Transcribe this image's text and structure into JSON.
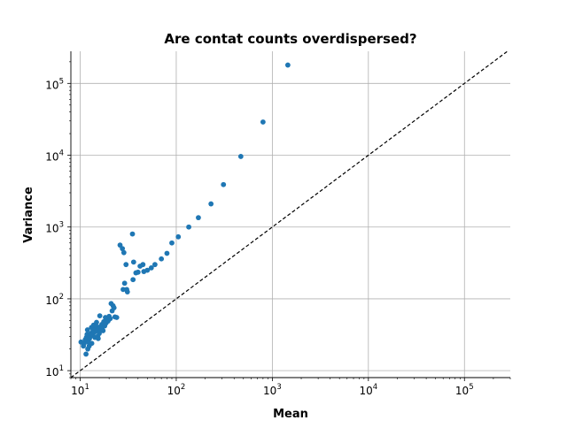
{
  "chart_data": {
    "type": "scatter",
    "title": "Are contat counts overdispersed?",
    "xlabel": "Mean",
    "ylabel": "Variance",
    "xscale": "log",
    "yscale": "log",
    "xlim": [
      8,
      300000
    ],
    "ylim": [
      8,
      280000
    ],
    "grid": true,
    "x_ticks": [
      {
        "value": 10,
        "base": "10",
        "exp": "1"
      },
      {
        "value": 100,
        "base": "10",
        "exp": "2"
      },
      {
        "value": 1000,
        "base": "10",
        "exp": "3"
      },
      {
        "value": 10000,
        "base": "10",
        "exp": "4"
      },
      {
        "value": 100000,
        "base": "10",
        "exp": "5"
      }
    ],
    "y_ticks": [
      {
        "value": 10,
        "base": "10",
        "exp": "1"
      },
      {
        "value": 100,
        "base": "10",
        "exp": "2"
      },
      {
        "value": 1000,
        "base": "10",
        "exp": "3"
      },
      {
        "value": 10000,
        "base": "10",
        "exp": "4"
      },
      {
        "value": 100000,
        "base": "10",
        "exp": "5"
      }
    ],
    "reference_line": {
      "style": "dashed",
      "color": "#000000",
      "relation": "y = x"
    },
    "marker_color": "#1f77b4",
    "points": [
      [
        10.2,
        25
      ],
      [
        10.8,
        22
      ],
      [
        11.0,
        24
      ],
      [
        11.3,
        27
      ],
      [
        11.5,
        17
      ],
      [
        11.6,
        29
      ],
      [
        11.8,
        32
      ],
      [
        11.9,
        37
      ],
      [
        12.0,
        20
      ],
      [
        12.2,
        25
      ],
      [
        12.4,
        22
      ],
      [
        12.5,
        28
      ],
      [
        12.7,
        30
      ],
      [
        12.9,
        33
      ],
      [
        13.1,
        40
      ],
      [
        13.2,
        24
      ],
      [
        13.4,
        31
      ],
      [
        13.6,
        36
      ],
      [
        13.8,
        43
      ],
      [
        14.0,
        34
      ],
      [
        14.2,
        29
      ],
      [
        14.4,
        38
      ],
      [
        14.6,
        42
      ],
      [
        14.8,
        47
      ],
      [
        15.0,
        36
      ],
      [
        15.2,
        30
      ],
      [
        15.4,
        28
      ],
      [
        15.6,
        39
      ],
      [
        15.8,
        33
      ],
      [
        16.0,
        58
      ],
      [
        16.2,
        41
      ],
      [
        16.5,
        37
      ],
      [
        16.8,
        44
      ],
      [
        17.0,
        40
      ],
      [
        17.3,
        36
      ],
      [
        17.6,
        48
      ],
      [
        18.0,
        42
      ],
      [
        18.3,
        55
      ],
      [
        18.6,
        46
      ],
      [
        19.0,
        52
      ],
      [
        19.5,
        49
      ],
      [
        20.0,
        57
      ],
      [
        20.5,
        53
      ],
      [
        21.0,
        86
      ],
      [
        21.5,
        68
      ],
      [
        22.0,
        80
      ],
      [
        22.5,
        75
      ],
      [
        23.0,
        56
      ],
      [
        24.0,
        55
      ],
      [
        26.0,
        560
      ],
      [
        27.5,
        500
      ],
      [
        28.5,
        440
      ],
      [
        28.0,
        135
      ],
      [
        29.0,
        165
      ],
      [
        30.0,
        300
      ],
      [
        30.5,
        135
      ],
      [
        31.0,
        125
      ],
      [
        35.0,
        800
      ],
      [
        36.0,
        325
      ],
      [
        35.5,
        185
      ],
      [
        38.0,
        230
      ],
      [
        40.0,
        235
      ],
      [
        42.0,
        285
      ],
      [
        45.0,
        300
      ],
      [
        46.0,
        240
      ],
      [
        50.0,
        250
      ],
      [
        55.0,
        270
      ],
      [
        60.0,
        300
      ],
      [
        70.0,
        360
      ],
      [
        80.0,
        430
      ],
      [
        90.0,
        600
      ],
      [
        105.0,
        730
      ],
      [
        135.0,
        1000
      ],
      [
        170.0,
        1350
      ],
      [
        230.0,
        2100
      ],
      [
        310.0,
        3900
      ],
      [
        470.0,
        9600
      ],
      [
        800.0,
        29000
      ],
      [
        1450.0,
        180000
      ]
    ]
  }
}
